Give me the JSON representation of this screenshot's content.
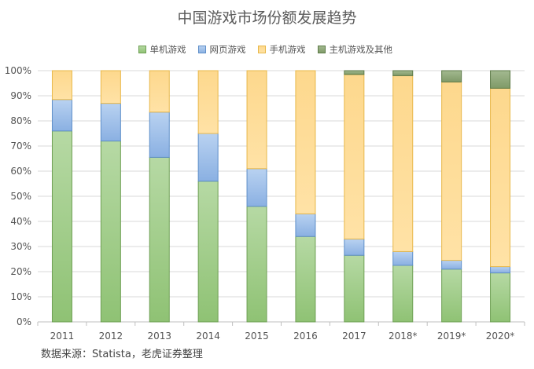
{
  "chart_data": {
    "type": "bar",
    "stacked": true,
    "normalized": true,
    "title": "中国游戏市场份额发展趋势",
    "source": "数据来源：Statista，老虎证券整理",
    "categories": [
      "2011",
      "2012",
      "2013",
      "2014",
      "2015",
      "2016",
      "2017",
      "2018*",
      "2019*",
      "2020*"
    ],
    "y_ticks": [
      "0%",
      "10%",
      "20%",
      "30%",
      "40%",
      "50%",
      "60%",
      "70%",
      "80%",
      "90%",
      "100%"
    ],
    "ylim": [
      0,
      100
    ],
    "grid": true,
    "legend_position": "top",
    "series": [
      {
        "name": "单机游戏",
        "color": "#8dc06f",
        "values": [
          76,
          72,
          65.5,
          56,
          46,
          34,
          26.5,
          22.5,
          21,
          19.5
        ]
      },
      {
        "name": "网页游戏",
        "color": "#8cb4e4",
        "values": [
          12.5,
          15,
          18,
          19,
          15,
          9,
          6.5,
          5.5,
          3.5,
          2.5
        ]
      },
      {
        "name": "手机游戏",
        "color": "#ffd37a",
        "values": [
          11.5,
          13,
          16.5,
          25,
          39,
          57,
          65.5,
          70,
          71,
          71
        ]
      },
      {
        "name": "主机游戏及其他",
        "color": "#7c9a64",
        "values": [
          0,
          0,
          0,
          0,
          0,
          0,
          1.5,
          2,
          4.5,
          7
        ]
      }
    ]
  }
}
